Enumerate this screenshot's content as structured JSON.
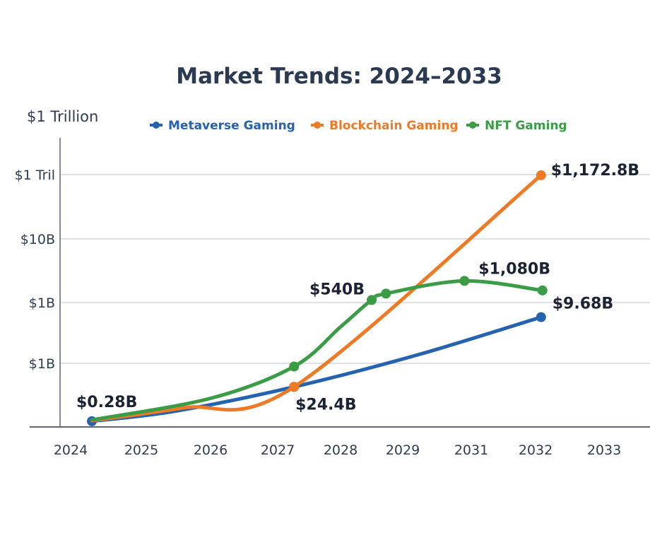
{
  "chart_data": {
    "type": "line",
    "title": "Market Trends: 2024–2033",
    "ylabel": "$1 Trillion",
    "xlabel": "",
    "x_ticks": [
      "2024",
      "2025",
      "2026",
      "2027",
      "2028",
      "2029",
      "2031",
      "2032",
      "2033"
    ],
    "x_tick_years": [
      2024,
      2025,
      2026,
      2027,
      2028,
      2029,
      2031,
      2032,
      2033
    ],
    "y_ticks": [
      "",
      "$1B",
      "$1B",
      "$10B",
      "$1 Tril"
    ],
    "y_units_note": "y values are positions on the printed tick scale (0 = baseline, 1 = first $1B, 2 = second $1B, 3 = $10B, 4 = $1 Tril)",
    "grid": "horizontal",
    "legend_position": "top-center",
    "series": [
      {
        "name": "Metaverse Gaming",
        "color": "#2563b0",
        "points": [
          [
            2024.3,
            0.09
          ],
          [
            2025.5,
            0.25
          ],
          [
            2027.26,
            0.63
          ],
          [
            2029.5,
            1.15
          ],
          [
            2032.08,
            1.76
          ]
        ],
        "markers": [
          0,
          2,
          4
        ]
      },
      {
        "name": "Blockchain Gaming",
        "color": "#ee7a26",
        "points": [
          [
            2024.3,
            0.1
          ],
          [
            2025.6,
            0.3
          ],
          [
            2027.26,
            0.63
          ],
          [
            2032.08,
            3.99
          ]
        ],
        "markers": [
          2,
          3
        ]
      },
      {
        "name": "NFT Gaming",
        "color": "#3a9c45",
        "points": [
          [
            2024.3,
            0.11
          ],
          [
            2026,
            0.45
          ],
          [
            2027.26,
            0.95
          ],
          [
            2028.0,
            1.6
          ],
          [
            2028.5,
            2.04
          ],
          [
            2028.73,
            2.14
          ],
          [
            2030.8,
            2.34
          ],
          [
            2032.1,
            2.19
          ]
        ],
        "markers": [
          2,
          4,
          5,
          6,
          7
        ]
      }
    ],
    "annotations": [
      {
        "text": "$0.28B",
        "x": 2024.3,
        "y": 0.09
      },
      {
        "text": "$24.4B",
        "x": 2027.26,
        "y": 0.63
      },
      {
        "text": "$540B",
        "x": 2028.5,
        "y": 2.04
      },
      {
        "text": "$1,080B",
        "x": 2030.8,
        "y": 2.34
      },
      {
        "text": "$1,172.8B",
        "x": 2032.08,
        "y": 3.99
      },
      {
        "text": "$9.68B",
        "x": 2032.08,
        "y": 1.76
      }
    ]
  }
}
